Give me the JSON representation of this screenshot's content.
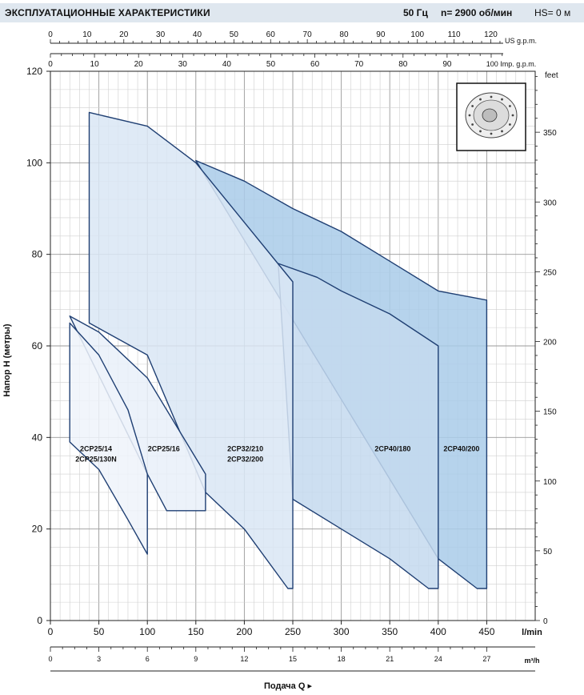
{
  "header": {
    "title": "ЭКСПЛУАТАЦИОННЫЕ ХАРАКТЕРИСТИКИ",
    "frequency": "50 Гц",
    "speed": "n= 2900 об/мин",
    "hs": "HS= 0 м"
  },
  "chart_data": {
    "type": "area",
    "ylabel": "Напор H (метры)",
    "xlabel": "Подача Q",
    "x_unit_lmin": "l/min",
    "x_unit_m3h": "m³/h",
    "ylim": [
      0,
      120
    ],
    "xlim_lmin": [
      0,
      500
    ],
    "grid": true,
    "x_ticks_lmin": [
      "0",
      "50",
      "100",
      "150",
      "200",
      "250",
      "300",
      "350",
      "400",
      "450"
    ],
    "x_ticks_m3h": [
      "0",
      "3",
      "6",
      "9",
      "12",
      "15",
      "18",
      "21",
      "24",
      "27"
    ],
    "y_ticks": [
      "0",
      "20",
      "40",
      "60",
      "80",
      "100",
      "120"
    ],
    "top_axis_us": {
      "label": "US g.p.m.",
      "ticks": [
        "0",
        "10",
        "20",
        "30",
        "40",
        "50",
        "60",
        "70",
        "80",
        "90",
        "100",
        "110",
        "120"
      ]
    },
    "top_axis_imp": {
      "label": "100 Imp. g.p.m.",
      "ticks": [
        "0",
        "10",
        "20",
        "30",
        "40",
        "50",
        "60",
        "70",
        "80",
        "90"
      ]
    },
    "right_axis_feet": {
      "label": "feet",
      "ticks": [
        "0",
        "50",
        "100",
        "150",
        "200",
        "250",
        "300",
        "350"
      ]
    },
    "regions": [
      {
        "name": "2CP40/200",
        "color": "#a9cbe9",
        "top": [
          [
            150,
            100.5
          ],
          [
            200,
            96
          ],
          [
            250,
            90
          ],
          [
            300,
            85
          ],
          [
            350,
            78.5
          ],
          [
            400,
            72
          ],
          [
            450,
            70
          ]
        ],
        "bottom": [
          [
            400,
            13.5
          ],
          [
            440,
            7
          ],
          [
            450,
            7
          ]
        ]
      },
      {
        "name": "2CP40/180",
        "color": "#c4d9ee",
        "top": [
          [
            235,
            78
          ],
          [
            275,
            75
          ],
          [
            300,
            72
          ],
          [
            350,
            67
          ],
          [
            400,
            60
          ]
        ],
        "bottom": [
          [
            250,
            26.5
          ],
          [
            300,
            20
          ],
          [
            350,
            13.5
          ],
          [
            390,
            7
          ],
          [
            400,
            7
          ]
        ]
      },
      {
        "name": "2CP32/210",
        "color": "#d9e6f4",
        "top": [
          [
            40,
            111
          ],
          [
            50,
            110.5
          ],
          [
            100,
            108
          ],
          [
            150,
            100
          ],
          [
            200,
            87
          ],
          [
            250,
            74
          ]
        ],
        "bottom": [
          [
            40,
            65
          ],
          [
            100,
            58
          ],
          [
            160,
            28
          ],
          [
            200,
            20
          ],
          [
            245,
            7
          ],
          [
            250,
            7
          ]
        ]
      },
      {
        "name": "2CP25/16",
        "color": "#e9f0f9",
        "top": [
          [
            20,
            66.5
          ],
          [
            50,
            63
          ],
          [
            100,
            53
          ],
          [
            160,
            32
          ]
        ],
        "bottom": [
          [
            100,
            32
          ],
          [
            120,
            24
          ],
          [
            160,
            24
          ]
        ]
      },
      {
        "name": "2CP25/14",
        "color": "#eef3fa",
        "top": [
          [
            20,
            65
          ],
          [
            50,
            58
          ],
          [
            80,
            46
          ],
          [
            100,
            32
          ]
        ],
        "bottom": [
          [
            20,
            39
          ],
          [
            50,
            33
          ],
          [
            80,
            22
          ],
          [
            100,
            14.5
          ]
        ]
      }
    ],
    "labels": [
      {
        "lines": [
          "2CP25/14",
          "2CP25/130N"
        ],
        "x": 47,
        "y": 37
      },
      {
        "lines": [
          "2CP25/16"
        ],
        "x": 117,
        "y": 37
      },
      {
        "lines": [
          "2CP32/210",
          "2CP32/200"
        ],
        "x": 201,
        "y": 37
      },
      {
        "lines": [
          "2CP40/180"
        ],
        "x": 353,
        "y": 37
      },
      {
        "lines": [
          "2CP40/200"
        ],
        "x": 424,
        "y": 37
      }
    ]
  }
}
